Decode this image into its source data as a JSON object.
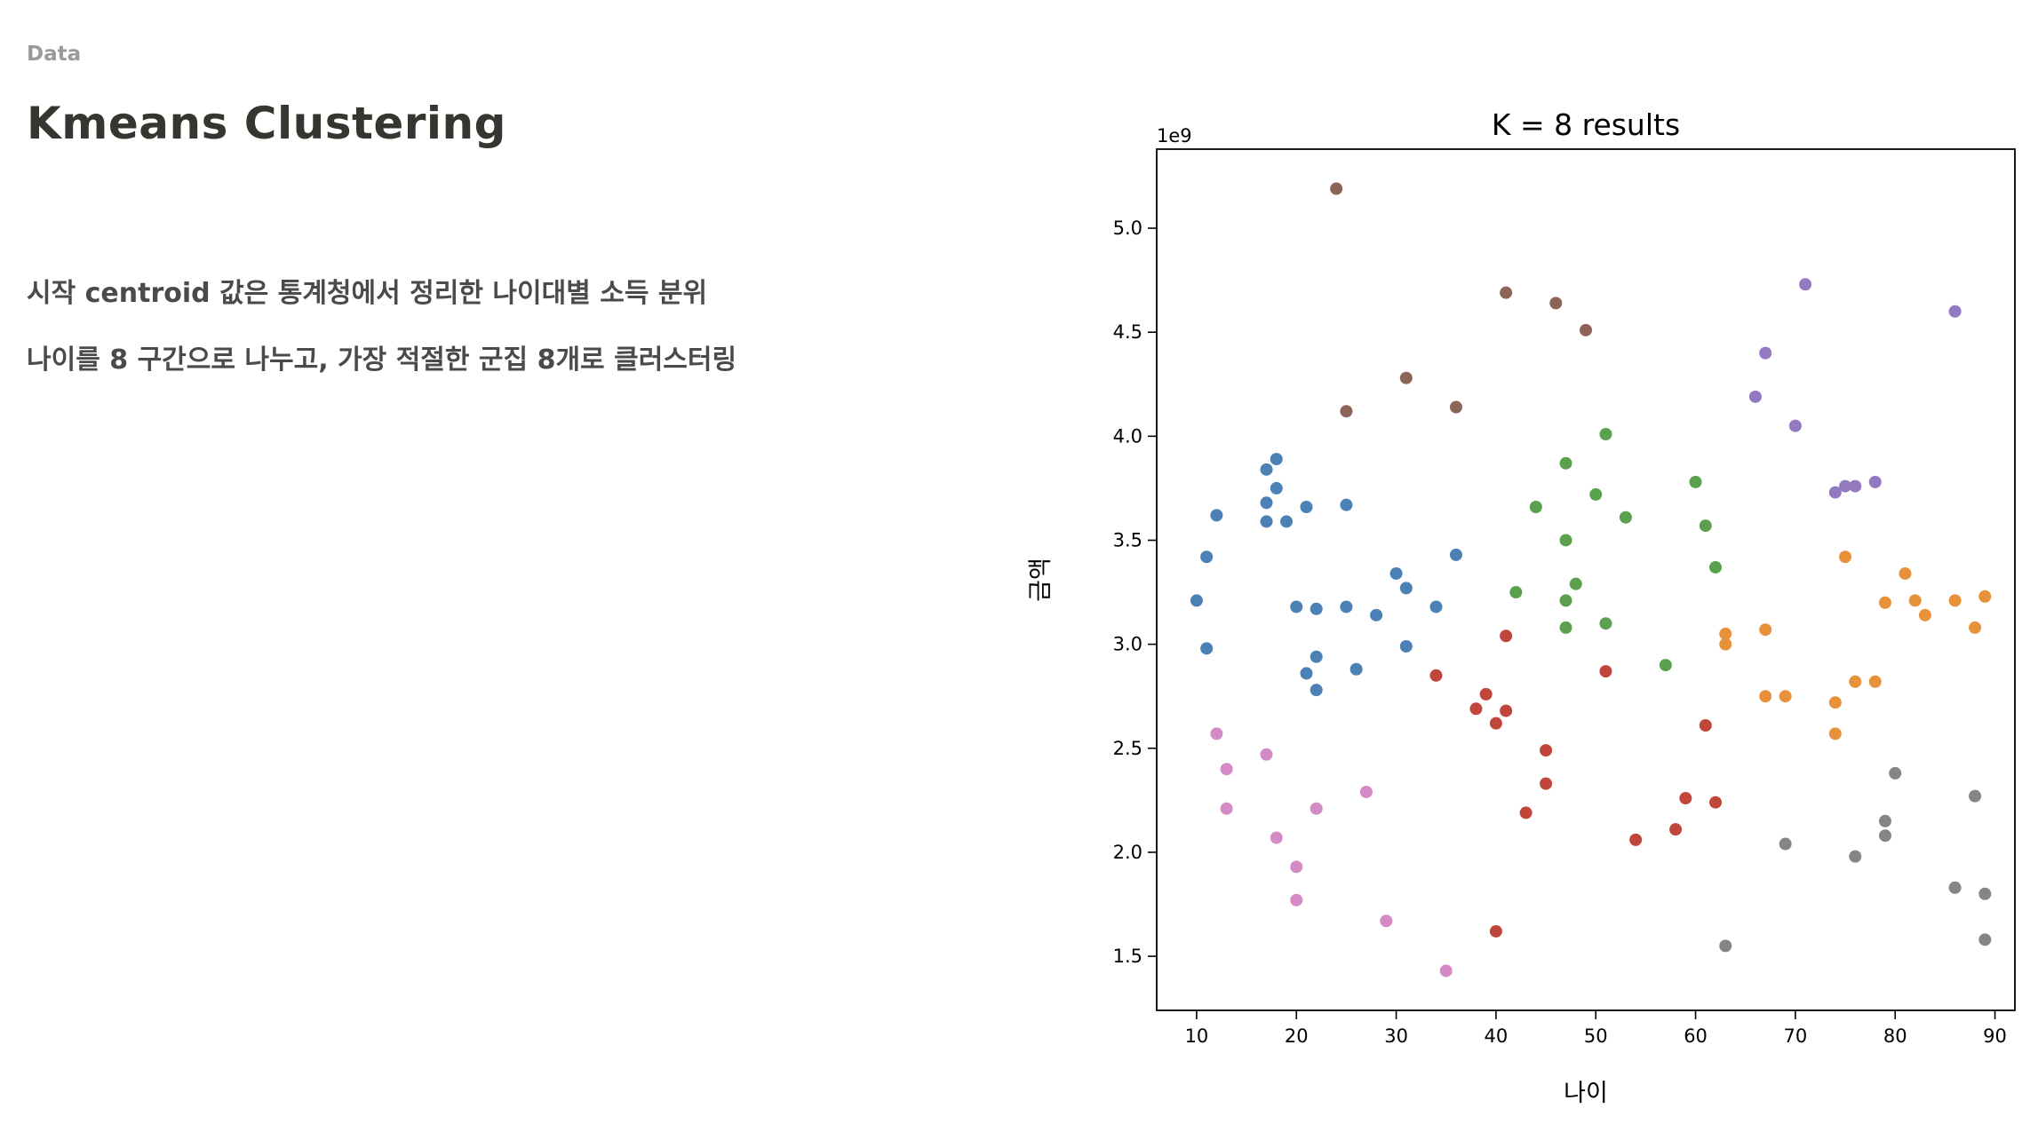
{
  "header": {
    "section_label": "Data",
    "title": "Kmeans Clustering"
  },
  "body": {
    "line1": "시작 centroid 값은 통계청에서 정리한 나이대별 소득 분위",
    "line2": "나이를 8 구간으로 나누고, 가장 적절한 군집 8개로 클러스터링"
  },
  "chart_data": {
    "type": "scatter",
    "title": "K = 8 results",
    "xlabel": "나이",
    "ylabel": "금액",
    "y_offset_label": "1e9",
    "xlim": [
      6,
      92
    ],
    "ylim": [
      1.24,
      5.38
    ],
    "xticks": [
      10,
      20,
      30,
      40,
      50,
      60,
      70,
      80,
      90
    ],
    "xtick_labels": [
      "10",
      "20",
      "30",
      "40",
      "50",
      "60",
      "70",
      "80",
      "90"
    ],
    "yticks": [
      1.5,
      2.0,
      2.5,
      3.0,
      3.5,
      4.0,
      4.5,
      5.0
    ],
    "ytick_labels": [
      "1.5",
      "2.0",
      "2.5",
      "3.0",
      "3.5",
      "4.0",
      "4.5",
      "5.0"
    ],
    "grid": false,
    "series": [
      {
        "color": "#4c81b5",
        "points": [
          [
            10,
            3.21
          ],
          [
            11,
            2.98
          ],
          [
            11,
            3.42
          ],
          [
            12,
            3.62
          ],
          [
            17,
            3.84
          ],
          [
            17,
            3.68
          ],
          [
            17,
            3.59
          ],
          [
            18,
            3.89
          ],
          [
            18,
            3.75
          ],
          [
            19,
            3.59
          ],
          [
            20,
            3.18
          ],
          [
            21,
            3.66
          ],
          [
            21,
            2.86
          ],
          [
            22,
            3.17
          ],
          [
            22,
            2.94
          ],
          [
            22,
            2.78
          ],
          [
            25,
            3.67
          ],
          [
            25,
            3.18
          ],
          [
            26,
            2.88
          ],
          [
            28,
            3.14
          ],
          [
            30,
            3.34
          ],
          [
            31,
            3.27
          ],
          [
            31,
            2.99
          ],
          [
            34,
            3.18
          ],
          [
            36,
            3.43
          ]
        ]
      },
      {
        "color": "#8c6558",
        "points": [
          [
            24,
            5.19
          ],
          [
            25,
            4.12
          ],
          [
            31,
            4.28
          ],
          [
            36,
            4.14
          ],
          [
            41,
            4.69
          ],
          [
            46,
            4.64
          ],
          [
            49,
            4.51
          ]
        ]
      },
      {
        "color": "#5ba04e",
        "points": [
          [
            42,
            3.25
          ],
          [
            44,
            3.66
          ],
          [
            47,
            3.87
          ],
          [
            47,
            3.5
          ],
          [
            47,
            3.21
          ],
          [
            47,
            3.08
          ],
          [
            48,
            3.29
          ],
          [
            50,
            3.72
          ],
          [
            51,
            4.01
          ],
          [
            51,
            3.1
          ],
          [
            53,
            3.61
          ],
          [
            57,
            2.9
          ],
          [
            60,
            3.78
          ],
          [
            61,
            3.57
          ],
          [
            62,
            3.37
          ]
        ]
      },
      {
        "color": "#c0463b",
        "points": [
          [
            34,
            2.85
          ],
          [
            38,
            2.69
          ],
          [
            39,
            2.76
          ],
          [
            40,
            2.62
          ],
          [
            40,
            1.62
          ],
          [
            41,
            3.04
          ],
          [
            41,
            2.68
          ],
          [
            43,
            2.19
          ],
          [
            45,
            2.49
          ],
          [
            45,
            2.33
          ],
          [
            51,
            2.87
          ],
          [
            54,
            2.06
          ],
          [
            58,
            2.11
          ],
          [
            59,
            2.26
          ],
          [
            61,
            2.61
          ],
          [
            62,
            2.24
          ]
        ]
      },
      {
        "color": "#9379c0",
        "points": [
          [
            66,
            4.19
          ],
          [
            67,
            4.4
          ],
          [
            70,
            4.05
          ],
          [
            71,
            4.73
          ],
          [
            74,
            3.73
          ],
          [
            75,
            3.76
          ],
          [
            76,
            3.76
          ],
          [
            78,
            3.78
          ],
          [
            86,
            4.6
          ]
        ]
      },
      {
        "color": "#e8913b",
        "points": [
          [
            63,
            3.05
          ],
          [
            63,
            3.0
          ],
          [
            67,
            3.07
          ],
          [
            67,
            2.75
          ],
          [
            69,
            2.75
          ],
          [
            74,
            2.72
          ],
          [
            74,
            2.57
          ],
          [
            75,
            3.42
          ],
          [
            76,
            2.82
          ],
          [
            78,
            2.82
          ],
          [
            79,
            3.2
          ],
          [
            81,
            3.34
          ],
          [
            82,
            3.21
          ],
          [
            83,
            3.14
          ],
          [
            86,
            3.21
          ],
          [
            88,
            3.08
          ],
          [
            89,
            3.23
          ]
        ]
      },
      {
        "color": "#d38ac5",
        "points": [
          [
            12,
            2.57
          ],
          [
            13,
            2.4
          ],
          [
            13,
            2.21
          ],
          [
            17,
            2.47
          ],
          [
            18,
            2.07
          ],
          [
            20,
            1.93
          ],
          [
            20,
            1.77
          ],
          [
            22,
            2.21
          ],
          [
            27,
            2.29
          ],
          [
            29,
            1.67
          ],
          [
            35,
            1.43
          ]
        ]
      },
      {
        "color": "#858585",
        "points": [
          [
            63,
            1.55
          ],
          [
            69,
            2.04
          ],
          [
            76,
            1.98
          ],
          [
            79,
            2.15
          ],
          [
            79,
            2.08
          ],
          [
            80,
            2.38
          ],
          [
            86,
            1.83
          ],
          [
            88,
            2.27
          ],
          [
            89,
            1.8
          ],
          [
            89,
            1.58
          ]
        ]
      }
    ]
  }
}
